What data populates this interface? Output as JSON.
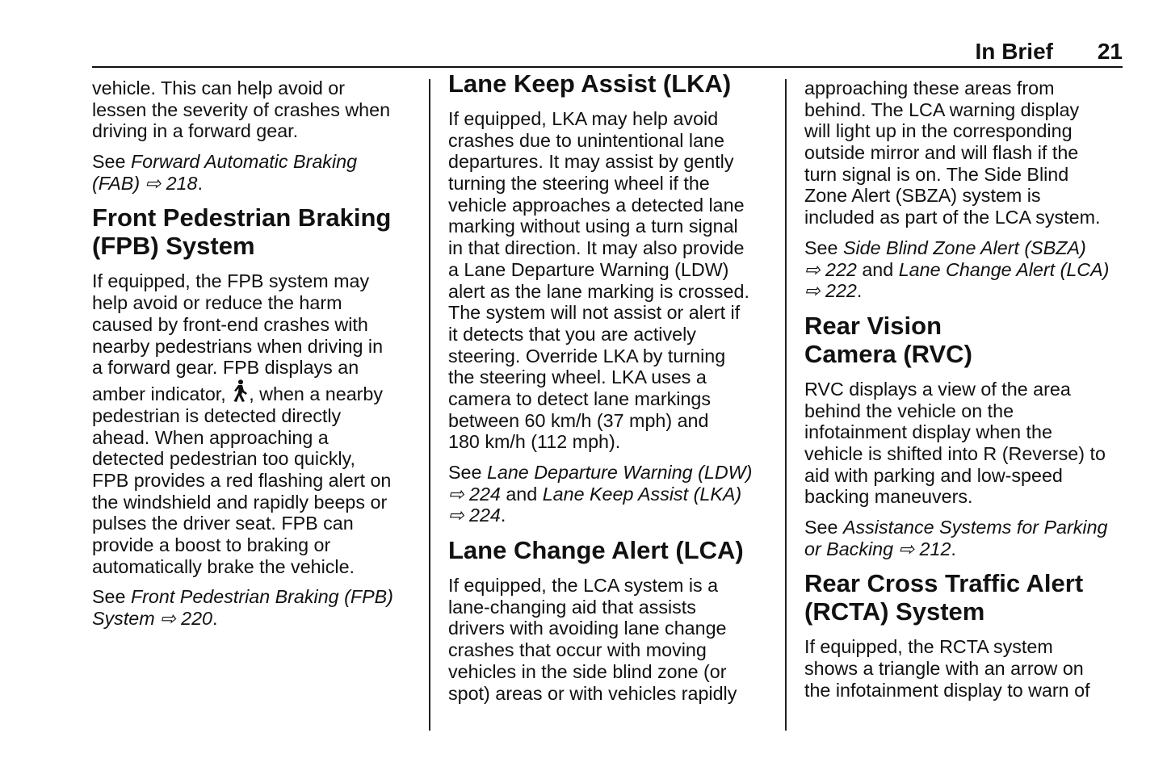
{
  "header": {
    "section": "In Brief",
    "page": "21"
  },
  "columns": [
    [
      {
        "type": "p",
        "lines": [
          [
            "vehicle. This can help avoid or"
          ],
          [
            "lessen the severity of crashes when"
          ],
          [
            "driving in a forward gear."
          ]
        ]
      },
      {
        "type": "p",
        "lines": [
          [
            "See ",
            {
              "i": "Forward Automatic Braking"
            }
          ],
          [
            {
              "i": "(FAB)"
            },
            " ",
            {
              "i": "⇨ 218"
            },
            "."
          ]
        ]
      },
      {
        "type": "h",
        "lines": [
          [
            "Front Pedestrian Braking"
          ],
          [
            "(FPB) System"
          ]
        ]
      },
      {
        "type": "p",
        "lines": [
          [
            "If equipped, the FPB system may"
          ],
          [
            "help avoid or reduce the harm"
          ],
          [
            "caused by front-end crashes with"
          ],
          [
            "nearby pedestrians when driving in"
          ],
          [
            "a forward gear. FPB displays an"
          ],
          [
            "amber indicator, ",
            {
              "icon": "pedestrian-icon"
            },
            ", when a nearby"
          ],
          [
            "pedestrian is detected directly"
          ],
          [
            "ahead. When approaching a"
          ],
          [
            "detected pedestrian too quickly,"
          ],
          [
            "FPB provides a red flashing alert on"
          ],
          [
            "the windshield and rapidly beeps or"
          ],
          [
            "pulses the driver seat. FPB can"
          ],
          [
            "provide a boost to braking or"
          ],
          [
            "automatically brake the vehicle."
          ]
        ]
      },
      {
        "type": "p",
        "lines": [
          [
            "See ",
            {
              "i": "Front Pedestrian Braking (FPB)"
            }
          ],
          [
            {
              "i": "System ⇨ 220"
            },
            "."
          ]
        ]
      }
    ],
    [
      {
        "type": "h",
        "first": true,
        "lines": [
          [
            "Lane Keep Assist (LKA)"
          ]
        ]
      },
      {
        "type": "p",
        "lines": [
          [
            "If equipped, LKA may help avoid"
          ],
          [
            "crashes due to unintentional lane"
          ],
          [
            "departures. It may assist by gently"
          ],
          [
            "turning the steering wheel if the"
          ],
          [
            "vehicle approaches a detected lane"
          ],
          [
            "marking without using a turn signal"
          ],
          [
            "in that direction. It may also provide"
          ],
          [
            "a Lane Departure Warning (LDW)"
          ],
          [
            "alert as the lane marking is crossed."
          ],
          [
            "The system will not assist or alert if"
          ],
          [
            "it detects that you are actively"
          ],
          [
            "steering. Override LKA by turning"
          ],
          [
            "the steering wheel. LKA uses a"
          ],
          [
            "camera to detect lane markings"
          ],
          [
            "between 60 km/h (37 mph) and"
          ],
          [
            "180 km/h (112 mph)."
          ]
        ]
      },
      {
        "type": "p",
        "lines": [
          [
            "See ",
            {
              "i": "Lane Departure Warning (LDW)"
            }
          ],
          [
            {
              "i": "⇨ 224"
            },
            " and ",
            {
              "i": "Lane Keep Assist (LKA)"
            }
          ],
          [
            {
              "i": "⇨ 224"
            },
            "."
          ]
        ]
      },
      {
        "type": "h",
        "lines": [
          [
            "Lane Change Alert (LCA)"
          ]
        ]
      },
      {
        "type": "p",
        "lines": [
          [
            "If equipped, the LCA system is a"
          ],
          [
            "lane-changing aid that assists"
          ],
          [
            "drivers with avoiding lane change"
          ],
          [
            "crashes that occur with moving"
          ],
          [
            "vehicles in the side blind zone (or"
          ],
          [
            "spot) areas or with vehicles rapidly"
          ]
        ]
      }
    ],
    [
      {
        "type": "p",
        "lines": [
          [
            "approaching these areas from"
          ],
          [
            "behind. The LCA warning display"
          ],
          [
            "will light up in the corresponding"
          ],
          [
            "outside mirror and will flash if the"
          ],
          [
            "turn signal is on. The Side Blind"
          ],
          [
            "Zone Alert (SBZA) system is"
          ],
          [
            "included as part of the LCA system."
          ]
        ]
      },
      {
        "type": "p",
        "lines": [
          [
            "See ",
            {
              "i": "Side Blind Zone Alert (SBZA)"
            }
          ],
          [
            {
              "i": "⇨ 222"
            },
            " and ",
            {
              "i": "Lane Change Alert (LCA)"
            }
          ],
          [
            {
              "i": "⇨ 222"
            },
            "."
          ]
        ]
      },
      {
        "type": "h",
        "lines": [
          [
            "Rear Vision"
          ],
          [
            "Camera (RVC)"
          ]
        ]
      },
      {
        "type": "p",
        "lines": [
          [
            "RVC displays a view of the area"
          ],
          [
            "behind the vehicle on the"
          ],
          [
            "infotainment display when the"
          ],
          [
            "vehicle is shifted into R (Reverse) to"
          ],
          [
            "aid with parking and low-speed"
          ],
          [
            "backing maneuvers."
          ]
        ]
      },
      {
        "type": "p",
        "lines": [
          [
            "See ",
            {
              "i": "Assistance Systems for Parking"
            }
          ],
          [
            {
              "i": "or Backing ⇨ 212"
            },
            "."
          ]
        ]
      },
      {
        "type": "h",
        "lines": [
          [
            "Rear Cross Traffic Alert"
          ],
          [
            "(RCTA) System"
          ]
        ]
      },
      {
        "type": "p",
        "lines": [
          [
            "If equipped, the RCTA system"
          ],
          [
            "shows a triangle with an arrow on"
          ],
          [
            "the infotainment display to warn of"
          ]
        ]
      }
    ]
  ]
}
